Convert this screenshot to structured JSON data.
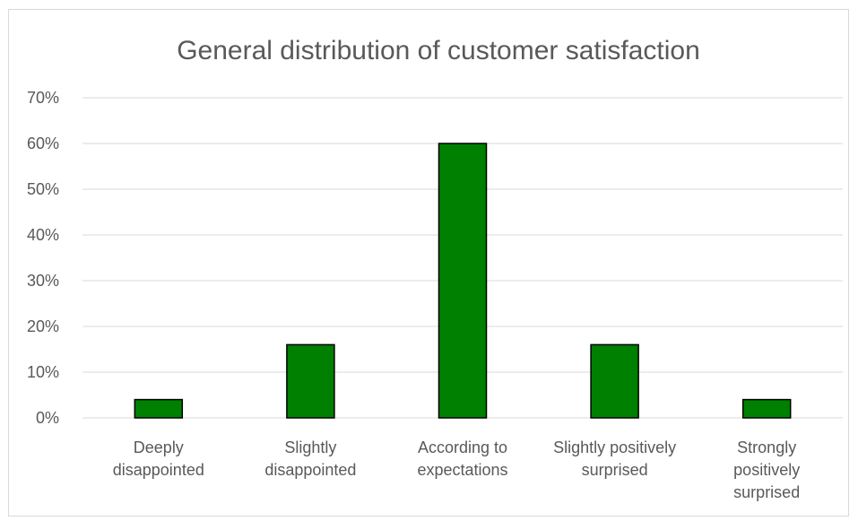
{
  "chart_data": {
    "type": "bar",
    "title": "General distribution of customer satisfaction",
    "xlabel": "",
    "ylabel": "",
    "categories": [
      [
        "Deeply",
        "disappointed"
      ],
      [
        "Slightly",
        "disappointed"
      ],
      [
        "According to",
        "expectations"
      ],
      [
        "Slightly positively",
        "surprised"
      ],
      [
        "Strongly",
        "positively",
        "surprised"
      ]
    ],
    "values": [
      0.04,
      0.16,
      0.6,
      0.16,
      0.04
    ],
    "ylim": [
      0,
      0.7
    ],
    "yticks": [
      "0%",
      "10%",
      "20%",
      "30%",
      "40%",
      "50%",
      "60%",
      "70%"
    ],
    "grid": true,
    "legend": "none",
    "bar_color": "#008000"
  }
}
